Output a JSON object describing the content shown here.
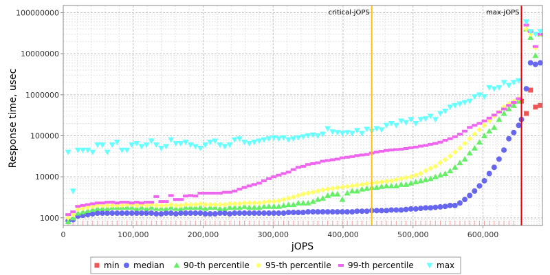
{
  "chart_data": {
    "type": "scatter",
    "xlabel": "jOPS",
    "ylabel": "Response time, usec",
    "xlim": [
      0,
      685000
    ],
    "ylim": [
      650,
      150000000
    ],
    "y_scale": "log",
    "grid": true,
    "x_ticks": [
      {
        "value": 0,
        "label": "0"
      },
      {
        "value": 100000,
        "label": "100,000"
      },
      {
        "value": 200000,
        "label": "200,000"
      },
      {
        "value": 300000,
        "label": "300,000"
      },
      {
        "value": 400000,
        "label": "400,000"
      },
      {
        "value": 500000,
        "label": "500,000"
      },
      {
        "value": 600000,
        "label": "600,000"
      }
    ],
    "y_ticks": [
      {
        "value": 1000,
        "label": "1000"
      },
      {
        "value": 10000,
        "label": "10000"
      },
      {
        "value": 100000,
        "label": "100000"
      },
      {
        "value": 1000000,
        "label": "1000000"
      },
      {
        "value": 10000000,
        "label": "10000000"
      },
      {
        "value": 100000000,
        "label": "100000000"
      }
    ],
    "markers": [
      {
        "name": "critical-jOPS",
        "x": 441000,
        "color": "#ffc20e"
      },
      {
        "name": "max-jOPS",
        "x": 655000,
        "color": "#e8000b"
      }
    ],
    "legend_position": "bottom",
    "series": [
      {
        "name": "min",
        "shape": "square",
        "color": "#ee5555",
        "x": [
          655000,
          662000,
          668000,
          675000,
          682000
        ],
        "y": [
          700000,
          350000,
          1300000,
          500000,
          550000
        ]
      },
      {
        "name": "median",
        "shape": "circle",
        "color": "#6666ee",
        "x": [
          7000,
          14000,
          21000,
          28000,
          35000,
          42000,
          49000,
          56000,
          63000,
          70000,
          77000,
          84000,
          91000,
          98000,
          105000,
          112000,
          119000,
          126000,
          133000,
          140000,
          147000,
          154000,
          161000,
          168000,
          175000,
          182000,
          189000,
          196000,
          203000,
          210000,
          217000,
          224000,
          231000,
          238000,
          245000,
          252000,
          259000,
          266000,
          273000,
          280000,
          287000,
          294000,
          301000,
          308000,
          315000,
          322000,
          329000,
          336000,
          343000,
          350000,
          357000,
          364000,
          371000,
          378000,
          385000,
          392000,
          399000,
          406000,
          413000,
          420000,
          427000,
          434000,
          441000,
          448000,
          455000,
          462000,
          469000,
          476000,
          483000,
          490000,
          497000,
          504000,
          511000,
          518000,
          525000,
          532000,
          539000,
          546000,
          553000,
          560000,
          567000,
          574000,
          581000,
          588000,
          595000,
          602000,
          609000,
          616000,
          623000,
          630000,
          637000,
          644000,
          651000,
          655000,
          662000,
          668000,
          675000,
          682000
        ],
        "y": [
          850,
          900,
          1100,
          1150,
          1200,
          1250,
          1300,
          1300,
          1300,
          1300,
          1300,
          1300,
          1300,
          1300,
          1300,
          1300,
          1300,
          1300,
          1250,
          1250,
          1300,
          1300,
          1250,
          1300,
          1300,
          1300,
          1300,
          1300,
          1250,
          1250,
          1250,
          1300,
          1300,
          1250,
          1300,
          1300,
          1300,
          1300,
          1300,
          1300,
          1300,
          1300,
          1300,
          1300,
          1300,
          1350,
          1350,
          1350,
          1350,
          1400,
          1400,
          1400,
          1400,
          1400,
          1400,
          1400,
          1400,
          1400,
          1400,
          1450,
          1450,
          1450,
          1500,
          1500,
          1500,
          1500,
          1550,
          1550,
          1550,
          1600,
          1650,
          1650,
          1700,
          1750,
          1750,
          1800,
          1850,
          1900,
          2000,
          2000,
          2300,
          2800,
          3500,
          4500,
          6000,
          8000,
          12000,
          17000,
          27000,
          45000,
          85000,
          120000,
          180000,
          250000,
          1400000,
          6000000,
          5500000,
          6000000
        ]
      },
      {
        "name": "90-th percentile",
        "shape": "triangle-up",
        "color": "#66ee66",
        "x": [
          7000,
          14000,
          21000,
          28000,
          35000,
          42000,
          49000,
          56000,
          63000,
          70000,
          77000,
          84000,
          91000,
          98000,
          105000,
          112000,
          119000,
          126000,
          133000,
          140000,
          147000,
          154000,
          161000,
          168000,
          175000,
          182000,
          189000,
          196000,
          203000,
          210000,
          217000,
          224000,
          231000,
          238000,
          245000,
          252000,
          259000,
          266000,
          273000,
          280000,
          287000,
          294000,
          301000,
          308000,
          315000,
          322000,
          329000,
          336000,
          343000,
          350000,
          357000,
          364000,
          371000,
          378000,
          385000,
          392000,
          399000,
          406000,
          413000,
          420000,
          427000,
          434000,
          441000,
          448000,
          455000,
          462000,
          469000,
          476000,
          483000,
          490000,
          497000,
          504000,
          511000,
          518000,
          525000,
          532000,
          539000,
          546000,
          553000,
          560000,
          567000,
          574000,
          581000,
          588000,
          595000,
          602000,
          609000,
          616000,
          623000,
          630000,
          637000,
          644000,
          651000,
          662000,
          668000,
          675000,
          682000
        ],
        "y": [
          800,
          1000,
          1300,
          1400,
          1500,
          1600,
          1700,
          1700,
          1700,
          1800,
          1800,
          1800,
          1800,
          1800,
          1700,
          1800,
          1700,
          1800,
          1700,
          1700,
          1700,
          1800,
          1700,
          1700,
          1800,
          1800,
          1800,
          1800,
          1700,
          1800,
          1800,
          1700,
          1700,
          1800,
          1800,
          1800,
          1900,
          1800,
          1800,
          1800,
          1900,
          1900,
          1900,
          1900,
          2000,
          2100,
          2100,
          2300,
          2300,
          2300,
          2500,
          2800,
          3000,
          3500,
          3800,
          3800,
          2800,
          4000,
          4500,
          4500,
          5000,
          5200,
          5500,
          5500,
          5800,
          6000,
          6000,
          6000,
          6500,
          6500,
          7000,
          7500,
          8000,
          8500,
          9000,
          10000,
          11000,
          12000,
          14000,
          17000,
          22000,
          27000,
          38000,
          50000,
          70000,
          100000,
          130000,
          160000,
          250000,
          350000,
          450000,
          550000,
          700000,
          40000000,
          25000000,
          9000000,
          30000000
        ]
      },
      {
        "name": "95-th percentile",
        "shape": "diamond",
        "color": "#ffff66",
        "x": [
          7000,
          14000,
          21000,
          28000,
          35000,
          42000,
          49000,
          56000,
          63000,
          70000,
          77000,
          84000,
          91000,
          98000,
          105000,
          112000,
          119000,
          126000,
          133000,
          140000,
          147000,
          154000,
          161000,
          168000,
          175000,
          182000,
          189000,
          196000,
          203000,
          210000,
          217000,
          224000,
          231000,
          238000,
          245000,
          252000,
          259000,
          266000,
          273000,
          280000,
          287000,
          294000,
          301000,
          308000,
          315000,
          322000,
          329000,
          336000,
          343000,
          350000,
          357000,
          364000,
          371000,
          378000,
          385000,
          392000,
          399000,
          406000,
          413000,
          420000,
          427000,
          434000,
          441000,
          448000,
          455000,
          462000,
          469000,
          476000,
          483000,
          490000,
          497000,
          504000,
          511000,
          518000,
          525000,
          532000,
          539000,
          546000,
          553000,
          560000,
          567000,
          574000,
          581000,
          588000,
          595000,
          602000,
          609000,
          616000,
          623000,
          630000,
          637000,
          644000,
          651000,
          662000,
          668000,
          675000,
          682000
        ],
        "y": [
          1000,
          1200,
          1600,
          1700,
          1800,
          1900,
          2000,
          2000,
          2000,
          2000,
          2000,
          2000,
          2100,
          2100,
          2000,
          2100,
          2000,
          2100,
          2000,
          2000,
          2000,
          2100,
          2000,
          2000,
          2100,
          2100,
          2100,
          2200,
          2100,
          2100,
          2100,
          2100,
          2100,
          2200,
          2200,
          2200,
          2300,
          2300,
          2300,
          2300,
          2400,
          2500,
          2500,
          2600,
          2800,
          3000,
          3200,
          3500,
          3800,
          4000,
          4200,
          4500,
          4800,
          5000,
          5200,
          5400,
          5600,
          5800,
          6000,
          6200,
          6500,
          6800,
          7000,
          7200,
          7500,
          7800,
          8000,
          8500,
          9000,
          9500,
          10000,
          11000,
          12000,
          14000,
          16000,
          18000,
          22000,
          26000,
          32000,
          40000,
          50000,
          65000,
          85000,
          110000,
          140000,
          180000,
          230000,
          300000,
          380000,
          500000,
          600000,
          700000,
          800000,
          40000000,
          30000000,
          14000000,
          30000000
        ]
      },
      {
        "name": "99-th percentile",
        "shape": "bar",
        "color": "#ee66ee",
        "x": [
          7000,
          14000,
          21000,
          28000,
          35000,
          42000,
          49000,
          56000,
          63000,
          70000,
          77000,
          84000,
          91000,
          98000,
          105000,
          112000,
          119000,
          126000,
          133000,
          140000,
          147000,
          154000,
          161000,
          168000,
          175000,
          182000,
          189000,
          196000,
          203000,
          210000,
          217000,
          224000,
          231000,
          238000,
          245000,
          252000,
          259000,
          266000,
          273000,
          280000,
          287000,
          294000,
          301000,
          308000,
          315000,
          322000,
          329000,
          336000,
          343000,
          350000,
          357000,
          364000,
          371000,
          378000,
          385000,
          392000,
          399000,
          406000,
          413000,
          420000,
          427000,
          434000,
          441000,
          448000,
          455000,
          462000,
          469000,
          476000,
          483000,
          490000,
          497000,
          504000,
          511000,
          518000,
          525000,
          532000,
          539000,
          546000,
          553000,
          560000,
          567000,
          574000,
          581000,
          588000,
          595000,
          602000,
          609000,
          616000,
          623000,
          630000,
          637000,
          644000,
          651000,
          662000,
          668000,
          675000,
          682000
        ],
        "y": [
          1200,
          1400,
          1900,
          2000,
          2100,
          2200,
          2300,
          2300,
          2400,
          2400,
          2300,
          2400,
          2400,
          2300,
          2400,
          2300,
          2400,
          2400,
          3300,
          2500,
          2500,
          3500,
          2800,
          2800,
          3400,
          3500,
          3400,
          4000,
          4000,
          4000,
          4000,
          4000,
          4200,
          4200,
          4500,
          5000,
          5500,
          6000,
          6500,
          7000,
          8000,
          9000,
          10000,
          11000,
          12000,
          13000,
          15000,
          17000,
          18000,
          20000,
          21000,
          22000,
          24000,
          25000,
          26000,
          27000,
          29000,
          30000,
          31000,
          33000,
          34000,
          35000,
          38000,
          40000,
          42000,
          44000,
          45000,
          46000,
          47000,
          49000,
          51000,
          53000,
          56000,
          58000,
          62000,
          65000,
          70000,
          78000,
          85000,
          95000,
          110000,
          130000,
          160000,
          180000,
          200000,
          230000,
          270000,
          320000,
          380000,
          450000,
          550000,
          650000,
          800000,
          50000000,
          35000000,
          15000000,
          30000000
        ]
      },
      {
        "name": "max",
        "shape": "triangle-down",
        "color": "#66ffff",
        "x": [
          7000,
          14000,
          21000,
          28000,
          35000,
          42000,
          49000,
          56000,
          63000,
          70000,
          77000,
          84000,
          91000,
          98000,
          105000,
          112000,
          119000,
          126000,
          133000,
          140000,
          147000,
          154000,
          161000,
          168000,
          175000,
          182000,
          189000,
          196000,
          203000,
          210000,
          217000,
          224000,
          231000,
          238000,
          245000,
          252000,
          259000,
          266000,
          273000,
          280000,
          287000,
          294000,
          301000,
          308000,
          315000,
          322000,
          329000,
          336000,
          343000,
          350000,
          357000,
          364000,
          371000,
          378000,
          385000,
          392000,
          399000,
          406000,
          413000,
          420000,
          427000,
          434000,
          441000,
          448000,
          455000,
          462000,
          469000,
          476000,
          483000,
          490000,
          497000,
          504000,
          511000,
          518000,
          525000,
          532000,
          539000,
          546000,
          553000,
          560000,
          567000,
          574000,
          581000,
          588000,
          595000,
          602000,
          609000,
          616000,
          623000,
          630000,
          637000,
          644000,
          651000,
          662000,
          668000,
          675000,
          682000
        ],
        "y": [
          40000,
          4500,
          45000,
          45000,
          45000,
          40000,
          60000,
          60000,
          40000,
          60000,
          70000,
          45000,
          45000,
          60000,
          65000,
          55000,
          60000,
          75000,
          60000,
          50000,
          55000,
          80000,
          65000,
          65000,
          70000,
          60000,
          55000,
          50000,
          60000,
          70000,
          75000,
          60000,
          55000,
          60000,
          80000,
          85000,
          70000,
          65000,
          70000,
          75000,
          80000,
          85000,
          90000,
          85000,
          90000,
          80000,
          85000,
          90000,
          95000,
          100000,
          105000,
          100000,
          110000,
          150000,
          125000,
          120000,
          115000,
          120000,
          115000,
          135000,
          115000,
          145000,
          130000,
          150000,
          140000,
          180000,
          200000,
          180000,
          230000,
          210000,
          250000,
          200000,
          250000,
          260000,
          300000,
          250000,
          350000,
          400000,
          500000,
          550000,
          600000,
          650000,
          700000,
          900000,
          1000000,
          900000,
          1500000,
          1400000,
          1500000,
          2000000,
          1700000,
          2000000,
          2200000,
          60000000,
          35000000,
          30000000,
          35000000
        ]
      }
    ]
  }
}
